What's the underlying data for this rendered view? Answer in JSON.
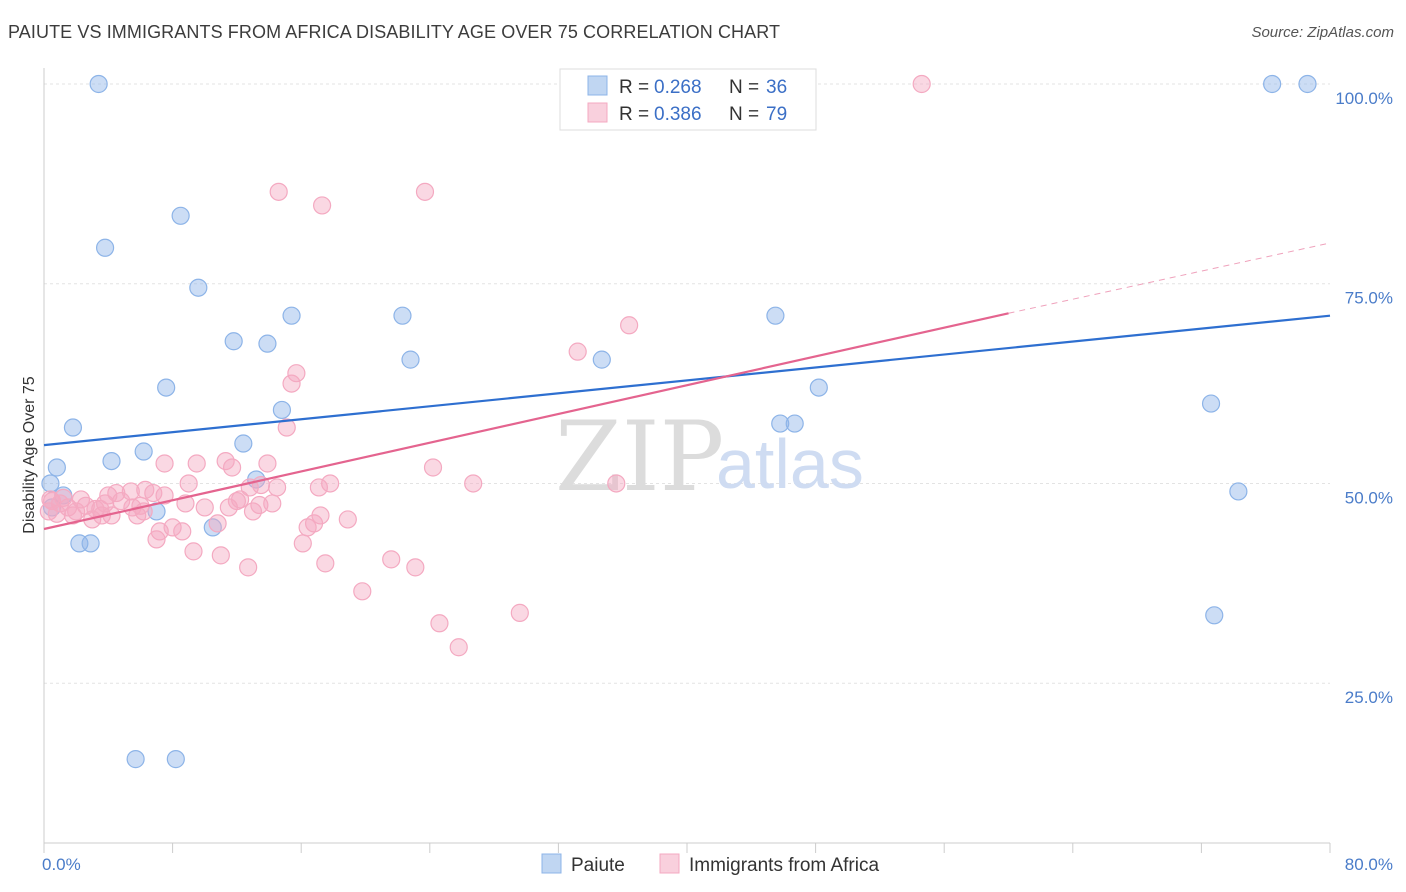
{
  "header": {
    "title": "PAIUTE VS IMMIGRANTS FROM AFRICA DISABILITY AGE OVER 75 CORRELATION CHART",
    "source": "Source: ZipAtlas.com"
  },
  "watermark": {
    "zip": "ZIP",
    "atlas": "atlas"
  },
  "chart_data": {
    "type": "scatter",
    "ylabel": "Disability Age Over 75",
    "xlim": [
      0,
      80
    ],
    "ylim": [
      5,
      102
    ],
    "x_ticks": [
      {
        "value": 0,
        "label": "0.0%"
      },
      {
        "value": 80,
        "label": "80.0%"
      }
    ],
    "y_ticks": [
      {
        "value": 25,
        "label": "25.0%"
      },
      {
        "value": 50,
        "label": "50.0%"
      },
      {
        "value": 75,
        "label": "75.0%"
      },
      {
        "value": 100,
        "label": "100.0%"
      }
    ],
    "grid": true,
    "legend_top": [
      {
        "r_label": "R = ",
        "r": "0.268",
        "n_label": "N = ",
        "n": "36",
        "color": "#8db4e8"
      },
      {
        "r_label": "R = ",
        "r": "0.386",
        "n_label": "N = ",
        "n": "79",
        "color": "#f4a9c1"
      }
    ],
    "series": [
      {
        "name": "Paiute",
        "color": "#8db4e8",
        "line_color": "#2e6fd0",
        "trend": {
          "x0": 0,
          "y0": 54.8,
          "x1": 80,
          "y1": 71.0
        },
        "points": [
          [
            3.4,
            100
          ],
          [
            76.4,
            100
          ],
          [
            78.6,
            100
          ],
          [
            8.5,
            83.5
          ],
          [
            3.8,
            79.5
          ],
          [
            9.6,
            74.5
          ],
          [
            15.4,
            71.0
          ],
          [
            22.3,
            71.0
          ],
          [
            45.5,
            71.0
          ],
          [
            11.8,
            67.8
          ],
          [
            13.9,
            67.5
          ],
          [
            22.8,
            65.5
          ],
          [
            34.7,
            65.5
          ],
          [
            7.6,
            62.0
          ],
          [
            48.2,
            62.0
          ],
          [
            14.8,
            59.2
          ],
          [
            72.6,
            60.0
          ],
          [
            1.8,
            57.0
          ],
          [
            45.8,
            57.5
          ],
          [
            46.7,
            57.5
          ],
          [
            12.4,
            55.0
          ],
          [
            6.2,
            54.0
          ],
          [
            4.2,
            52.8
          ],
          [
            0.8,
            52.0
          ],
          [
            13.2,
            50.5
          ],
          [
            0.4,
            50.0
          ],
          [
            1.2,
            48.5
          ],
          [
            74.3,
            49.0
          ],
          [
            7.0,
            46.5
          ],
          [
            10.5,
            44.5
          ],
          [
            2.2,
            42.5
          ],
          [
            2.9,
            42.5
          ],
          [
            72.8,
            33.5
          ],
          [
            5.7,
            15.5
          ],
          [
            8.2,
            15.5
          ],
          [
            0.5,
            47.0
          ]
        ]
      },
      {
        "name": "Immigrants from Africa",
        "color": "#f4a9c1",
        "line_color": "#e4648f",
        "trend": {
          "x0": 0,
          "y0": 44.3,
          "x1": 60,
          "y1": 71.3
        },
        "trend_dashed": {
          "x0": 60,
          "y0": 71.3,
          "x1": 80,
          "y1": 80.1
        },
        "points": [
          [
            54.6,
            100
          ],
          [
            14.6,
            86.5
          ],
          [
            23.7,
            86.5
          ],
          [
            17.3,
            84.8
          ],
          [
            36.4,
            69.8
          ],
          [
            33.2,
            66.5
          ],
          [
            15.7,
            63.8
          ],
          [
            15.4,
            62.5
          ],
          [
            15.1,
            57.0
          ],
          [
            24.2,
            52.0
          ],
          [
            7.5,
            52.5
          ],
          [
            9.5,
            52.5
          ],
          [
            11.3,
            52.8
          ],
          [
            11.7,
            52.0
          ],
          [
            13.9,
            52.5
          ],
          [
            9.0,
            50.0
          ],
          [
            12.8,
            49.5
          ],
          [
            13.5,
            49.8
          ],
          [
            14.5,
            49.5
          ],
          [
            17.1,
            49.5
          ],
          [
            17.8,
            50.0
          ],
          [
            26.7,
            50.0
          ],
          [
            35.6,
            50.0
          ],
          [
            4.5,
            48.8
          ],
          [
            5.4,
            49.0
          ],
          [
            6.3,
            49.2
          ],
          [
            6.8,
            48.8
          ],
          [
            7.5,
            48.5
          ],
          [
            0.5,
            47.8
          ],
          [
            1.0,
            47.5
          ],
          [
            1.5,
            47.0
          ],
          [
            2.0,
            46.5
          ],
          [
            2.6,
            47.2
          ],
          [
            3.2,
            46.8
          ],
          [
            3.8,
            47.5
          ],
          [
            4.2,
            46.0
          ],
          [
            4.8,
            47.8
          ],
          [
            5.5,
            47.0
          ],
          [
            6.2,
            46.5
          ],
          [
            8.8,
            47.5
          ],
          [
            10.0,
            47.0
          ],
          [
            11.5,
            47.0
          ],
          [
            12.2,
            48.0
          ],
          [
            13.0,
            46.5
          ],
          [
            14.2,
            47.5
          ],
          [
            0.3,
            46.5
          ],
          [
            0.8,
            46.2
          ],
          [
            1.8,
            46.0
          ],
          [
            3.0,
            45.5
          ],
          [
            3.6,
            46.0
          ],
          [
            5.8,
            46.0
          ],
          [
            7.2,
            44.0
          ],
          [
            8.0,
            44.5
          ],
          [
            10.8,
            45.0
          ],
          [
            16.4,
            44.5
          ],
          [
            17.2,
            46.0
          ],
          [
            18.9,
            45.5
          ],
          [
            16.8,
            45.0
          ],
          [
            7.0,
            43.0
          ],
          [
            8.6,
            44.0
          ],
          [
            11.0,
            41.0
          ],
          [
            9.3,
            41.5
          ],
          [
            16.1,
            42.5
          ],
          [
            17.5,
            40.0
          ],
          [
            12.7,
            39.5
          ],
          [
            21.6,
            40.5
          ],
          [
            23.1,
            39.5
          ],
          [
            19.8,
            36.5
          ],
          [
            24.6,
            32.5
          ],
          [
            25.8,
            29.5
          ],
          [
            29.6,
            33.8
          ],
          [
            0.4,
            48.0
          ],
          [
            1.2,
            48.2
          ],
          [
            2.3,
            48.0
          ],
          [
            3.5,
            46.8
          ],
          [
            4.0,
            48.5
          ],
          [
            6.0,
            47.2
          ],
          [
            12.0,
            47.8
          ],
          [
            13.4,
            47.3
          ]
        ]
      }
    ]
  }
}
